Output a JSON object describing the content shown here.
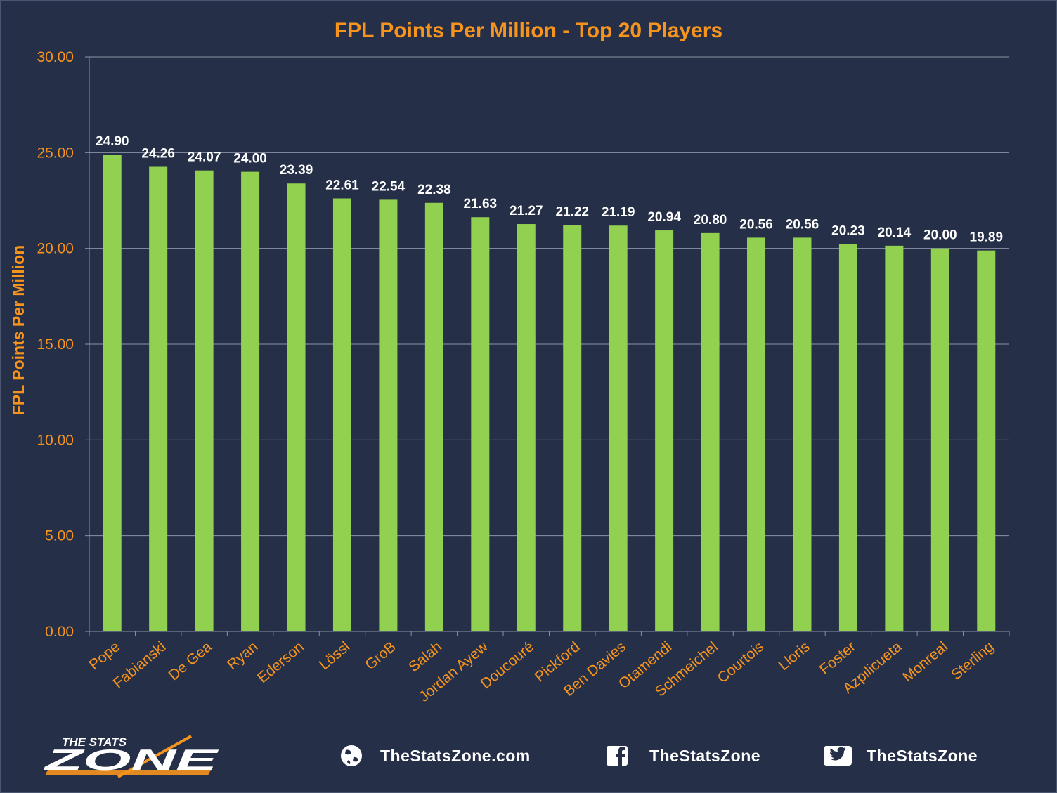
{
  "chart_data": {
    "type": "bar",
    "title": "FPL Points Per Million - Top 20 Players",
    "ylabel": "FPL Points Per Million",
    "xlabel": "",
    "ylim": [
      0,
      30
    ],
    "yticks": [
      "0.00",
      "5.00",
      "10.00",
      "15.00",
      "20.00",
      "25.00",
      "30.00"
    ],
    "grid": true,
    "categories": [
      "Pope",
      "Fabianski",
      "De Gea",
      "Ryan",
      "Ederson",
      "Lössl",
      "GroB",
      "Salah",
      "Jordan Ayew",
      "Doucouré",
      "Pickford",
      "Ben Davies",
      "Otamendi",
      "Schmeichel",
      "Courtois",
      "Lloris",
      "Foster",
      "Azpilicueta",
      "Monreal",
      "Sterling"
    ],
    "values": [
      24.9,
      24.26,
      24.07,
      24.0,
      23.39,
      22.61,
      22.54,
      22.38,
      21.63,
      21.27,
      21.22,
      21.19,
      20.94,
      20.8,
      20.56,
      20.56,
      20.23,
      20.14,
      20.0,
      19.89
    ],
    "data_labels": [
      "24.90",
      "24.26",
      "24.07",
      "24.00",
      "23.39",
      "22.61",
      "22.54",
      "22.38",
      "21.63",
      "21.27",
      "21.22",
      "21.19",
      "20.94",
      "20.80",
      "20.56",
      "20.56",
      "20.23",
      "20.14",
      "20.00",
      "19.89"
    ],
    "bar_color": "#92d050",
    "text_color": "#f7941d",
    "background": "#253048"
  },
  "footer": {
    "brand_top": "THE STATS",
    "brand_bottom": "ZONE",
    "website": "TheStatsZone.com",
    "facebook": "TheStatsZone",
    "twitter": "TheStatsZone",
    "icons": [
      "globe-icon",
      "facebook-icon",
      "twitter-icon"
    ]
  }
}
